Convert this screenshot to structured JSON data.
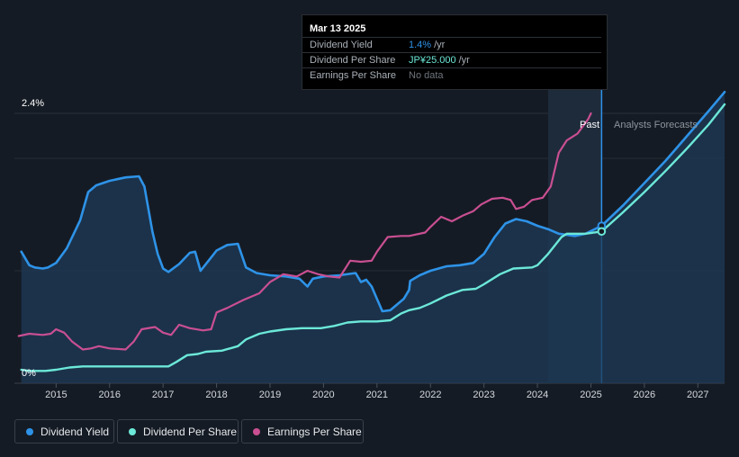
{
  "tooltip": {
    "date": "Mar 13 2025",
    "rows": [
      {
        "label": "Dividend Yield",
        "value": "1.4%",
        "unit": "/yr",
        "color": "#2e93e8"
      },
      {
        "label": "Dividend Per Share",
        "value": "JP¥25.000",
        "unit": "/yr",
        "color": "#6ce8d8"
      },
      {
        "label": "Earnings Per Share",
        "value": "No data",
        "unit": "",
        "color": "#6e747c"
      }
    ]
  },
  "regions": {
    "past_label": "Past",
    "forecast_label": "Analysts Forecasts"
  },
  "legend": [
    {
      "label": "Dividend Yield",
      "color": "#2e93e8"
    },
    {
      "label": "Dividend Per Share",
      "color": "#6ce8d8"
    },
    {
      "label": "Earnings Per Share",
      "color": "#c94f92"
    }
  ],
  "colors": {
    "yield": "#2e93e8",
    "dps": "#6ce8d8",
    "eps": "#c94f92",
    "grid": "#2b323b"
  },
  "chart_data": {
    "type": "line",
    "title": "",
    "ylim": [
      0,
      2.4
    ],
    "y_tick_labels": [
      "2.4%",
      "0%"
    ],
    "x_tick_labels": [
      "2015",
      "2016",
      "2017",
      "2018",
      "2019",
      "2020",
      "2021",
      "2022",
      "2023",
      "2024",
      "2025",
      "2026",
      "2027"
    ],
    "xlim": [
      2014.3,
      2027.5
    ],
    "past_range": [
      2024.2,
      2025.2
    ],
    "marker_x": 2025.2,
    "series": [
      {
        "name": "Dividend Yield",
        "unit": "%",
        "fill": true,
        "points": [
          [
            2014.35,
            1.17
          ],
          [
            2014.5,
            1.05
          ],
          [
            2014.6,
            1.03
          ],
          [
            2014.75,
            1.02
          ],
          [
            2014.85,
            1.03
          ],
          [
            2015.0,
            1.07
          ],
          [
            2015.2,
            1.2
          ],
          [
            2015.45,
            1.45
          ],
          [
            2015.6,
            1.7
          ],
          [
            2015.75,
            1.76
          ],
          [
            2016.0,
            1.8
          ],
          [
            2016.3,
            1.83
          ],
          [
            2016.55,
            1.84
          ],
          [
            2016.65,
            1.75
          ],
          [
            2016.8,
            1.35
          ],
          [
            2016.9,
            1.15
          ],
          [
            2017.0,
            1.02
          ],
          [
            2017.1,
            0.99
          ],
          [
            2017.3,
            1.06
          ],
          [
            2017.5,
            1.16
          ],
          [
            2017.6,
            1.17
          ],
          [
            2017.7,
            1.0
          ],
          [
            2017.85,
            1.09
          ],
          [
            2018.0,
            1.18
          ],
          [
            2018.2,
            1.23
          ],
          [
            2018.4,
            1.24
          ],
          [
            2018.55,
            1.03
          ],
          [
            2018.75,
            0.98
          ],
          [
            2019.0,
            0.96
          ],
          [
            2019.3,
            0.95
          ],
          [
            2019.55,
            0.93
          ],
          [
            2019.7,
            0.86
          ],
          [
            2019.8,
            0.93
          ],
          [
            2020.0,
            0.95
          ],
          [
            2020.3,
            0.96
          ],
          [
            2020.6,
            0.98
          ],
          [
            2020.7,
            0.9
          ],
          [
            2020.8,
            0.92
          ],
          [
            2020.9,
            0.86
          ],
          [
            2021.0,
            0.75
          ],
          [
            2021.1,
            0.64
          ],
          [
            2021.25,
            0.65
          ],
          [
            2021.5,
            0.75
          ],
          [
            2021.6,
            0.83
          ],
          [
            2021.62,
            0.91
          ],
          [
            2021.8,
            0.96
          ],
          [
            2022.0,
            1.0
          ],
          [
            2022.3,
            1.04
          ],
          [
            2022.55,
            1.05
          ],
          [
            2022.8,
            1.07
          ],
          [
            2023.0,
            1.15
          ],
          [
            2023.2,
            1.3
          ],
          [
            2023.4,
            1.42
          ],
          [
            2023.6,
            1.46
          ],
          [
            2023.8,
            1.44
          ],
          [
            2024.0,
            1.4
          ],
          [
            2024.2,
            1.37
          ],
          [
            2024.4,
            1.33
          ],
          [
            2024.7,
            1.31
          ],
          [
            2024.9,
            1.33
          ],
          [
            2025.2,
            1.4
          ],
          [
            2025.6,
            1.58
          ],
          [
            2026.0,
            1.78
          ],
          [
            2026.4,
            1.98
          ],
          [
            2026.8,
            2.2
          ],
          [
            2027.2,
            2.42
          ],
          [
            2027.5,
            2.59
          ]
        ]
      },
      {
        "name": "Dividend Per Share",
        "unit": "JP¥",
        "points": [
          [
            2014.35,
            0.12
          ],
          [
            2014.5,
            0.11
          ],
          [
            2014.8,
            0.11
          ],
          [
            2015.0,
            0.12
          ],
          [
            2015.25,
            0.14
          ],
          [
            2015.5,
            0.15
          ],
          [
            2016.0,
            0.15
          ],
          [
            2016.5,
            0.15
          ],
          [
            2016.9,
            0.15
          ],
          [
            2017.1,
            0.15
          ],
          [
            2017.25,
            0.19
          ],
          [
            2017.45,
            0.25
          ],
          [
            2017.65,
            0.26
          ],
          [
            2017.8,
            0.28
          ],
          [
            2018.1,
            0.29
          ],
          [
            2018.4,
            0.33
          ],
          [
            2018.55,
            0.39
          ],
          [
            2018.8,
            0.44
          ],
          [
            2019.0,
            0.46
          ],
          [
            2019.3,
            0.48
          ],
          [
            2019.6,
            0.49
          ],
          [
            2019.95,
            0.49
          ],
          [
            2020.2,
            0.51
          ],
          [
            2020.45,
            0.54
          ],
          [
            2020.7,
            0.55
          ],
          [
            2021.0,
            0.55
          ],
          [
            2021.25,
            0.56
          ],
          [
            2021.45,
            0.62
          ],
          [
            2021.6,
            0.65
          ],
          [
            2021.8,
            0.67
          ],
          [
            2022.0,
            0.71
          ],
          [
            2022.3,
            0.78
          ],
          [
            2022.6,
            0.83
          ],
          [
            2022.85,
            0.84
          ],
          [
            2023.0,
            0.88
          ],
          [
            2023.3,
            0.97
          ],
          [
            2023.55,
            1.02
          ],
          [
            2023.9,
            1.03
          ],
          [
            2024.0,
            1.05
          ],
          [
            2024.2,
            1.15
          ],
          [
            2024.45,
            1.3
          ],
          [
            2024.55,
            1.33
          ],
          [
            2024.9,
            1.33
          ],
          [
            2025.2,
            1.35
          ],
          [
            2025.6,
            1.52
          ],
          [
            2026.0,
            1.7
          ],
          [
            2026.4,
            1.89
          ],
          [
            2026.8,
            2.09
          ],
          [
            2027.2,
            2.3
          ],
          [
            2027.5,
            2.48
          ]
        ]
      },
      {
        "name": "Earnings Per Share",
        "unit": "JP¥",
        "points": [
          [
            2014.3,
            0.42
          ],
          [
            2014.5,
            0.44
          ],
          [
            2014.75,
            0.43
          ],
          [
            2014.9,
            0.44
          ],
          [
            2015.0,
            0.48
          ],
          [
            2015.15,
            0.45
          ],
          [
            2015.3,
            0.37
          ],
          [
            2015.5,
            0.3
          ],
          [
            2015.65,
            0.31
          ],
          [
            2015.8,
            0.33
          ],
          [
            2016.0,
            0.31
          ],
          [
            2016.3,
            0.3
          ],
          [
            2016.45,
            0.37
          ],
          [
            2016.6,
            0.48
          ],
          [
            2016.85,
            0.5
          ],
          [
            2017.0,
            0.45
          ],
          [
            2017.15,
            0.43
          ],
          [
            2017.3,
            0.52
          ],
          [
            2017.5,
            0.49
          ],
          [
            2017.75,
            0.47
          ],
          [
            2017.9,
            0.48
          ],
          [
            2018.0,
            0.63
          ],
          [
            2018.2,
            0.67
          ],
          [
            2018.5,
            0.74
          ],
          [
            2018.8,
            0.8
          ],
          [
            2019.0,
            0.9
          ],
          [
            2019.25,
            0.97
          ],
          [
            2019.5,
            0.95
          ],
          [
            2019.7,
            1.0
          ],
          [
            2019.9,
            0.97
          ],
          [
            2020.1,
            0.95
          ],
          [
            2020.3,
            0.94
          ],
          [
            2020.5,
            1.09
          ],
          [
            2020.7,
            1.08
          ],
          [
            2020.9,
            1.09
          ],
          [
            2021.0,
            1.17
          ],
          [
            2021.2,
            1.3
          ],
          [
            2021.45,
            1.31
          ],
          [
            2021.6,
            1.31
          ],
          [
            2021.9,
            1.34
          ],
          [
            2022.0,
            1.39
          ],
          [
            2022.2,
            1.48
          ],
          [
            2022.4,
            1.44
          ],
          [
            2022.6,
            1.49
          ],
          [
            2022.8,
            1.53
          ],
          [
            2022.95,
            1.59
          ],
          [
            2023.15,
            1.64
          ],
          [
            2023.35,
            1.65
          ],
          [
            2023.5,
            1.63
          ],
          [
            2023.6,
            1.55
          ],
          [
            2023.75,
            1.57
          ],
          [
            2023.9,
            1.63
          ],
          [
            2024.1,
            1.65
          ],
          [
            2024.25,
            1.75
          ],
          [
            2024.4,
            2.05
          ],
          [
            2024.55,
            2.16
          ],
          [
            2024.75,
            2.22
          ],
          [
            2024.95,
            2.35
          ],
          [
            2025.0,
            2.4
          ]
        ]
      }
    ]
  }
}
